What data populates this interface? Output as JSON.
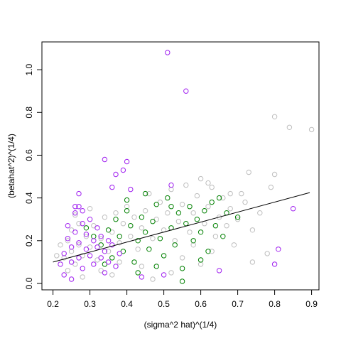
{
  "chart_data": {
    "type": "scatter",
    "xlabel": "(sigma^2 hat)^(1/4)",
    "ylabel": "(betahat^2)^(1/4)",
    "xlim": [
      0.17,
      0.92
    ],
    "ylim": [
      -0.03,
      1.13
    ],
    "x_ticks": [
      0.2,
      0.3,
      0.4,
      0.5,
      0.6,
      0.7,
      0.8,
      0.9
    ],
    "x_tick_labels": [
      "0.2",
      "0.3",
      "0.4",
      "0.5",
      "0.6",
      "0.7",
      "0.8",
      "0.9"
    ],
    "y_ticks": [
      0.0,
      0.2,
      0.4,
      0.6,
      0.8,
      1.0
    ],
    "y_tick_labels": [
      "0.0",
      "0.2",
      "0.4",
      "0.6",
      "0.8",
      "1.0"
    ],
    "grid": false,
    "marker": "open-circle",
    "series_colors": [
      "#bebebe",
      "#008000",
      "#a020f0"
    ],
    "series": [
      {
        "color": "#bebebe",
        "values": [
          [
            0.23,
            0.12
          ],
          [
            0.24,
            0.2
          ],
          [
            0.25,
            0.15
          ],
          [
            0.25,
            0.25
          ],
          [
            0.26,
            0.09
          ],
          [
            0.27,
            0.18
          ],
          [
            0.27,
            0.28
          ],
          [
            0.28,
            0.13
          ],
          [
            0.29,
            0.22
          ],
          [
            0.3,
            0.17
          ],
          [
            0.31,
            0.27
          ],
          [
            0.32,
            0.11
          ],
          [
            0.33,
            0.21
          ],
          [
            0.34,
            0.31
          ],
          [
            0.35,
            0.15
          ],
          [
            0.36,
            0.24
          ],
          [
            0.37,
            0.33
          ],
          [
            0.38,
            0.19
          ],
          [
            0.39,
            0.28
          ],
          [
            0.4,
            0.36
          ],
          [
            0.41,
            0.22
          ],
          [
            0.42,
            0.31
          ],
          [
            0.43,
            0.16
          ],
          [
            0.44,
            0.26
          ],
          [
            0.45,
            0.34
          ],
          [
            0.46,
            0.42
          ],
          [
            0.47,
            0.21
          ],
          [
            0.48,
            0.3
          ],
          [
            0.49,
            0.38
          ],
          [
            0.5,
            0.25
          ],
          [
            0.51,
            0.33
          ],
          [
            0.52,
            0.44
          ],
          [
            0.53,
            0.2
          ],
          [
            0.54,
            0.29
          ],
          [
            0.55,
            0.37
          ],
          [
            0.56,
            0.46
          ],
          [
            0.57,
            0.24
          ],
          [
            0.58,
            0.33
          ],
          [
            0.59,
            0.41
          ],
          [
            0.6,
            0.49
          ],
          [
            0.61,
            0.28
          ],
          [
            0.62,
            0.36
          ],
          [
            0.63,
            0.45
          ],
          [
            0.64,
            0.22
          ],
          [
            0.65,
            0.31
          ],
          [
            0.66,
            0.4
          ],
          [
            0.67,
            0.27
          ],
          [
            0.68,
            0.35
          ],
          [
            0.69,
            0.18
          ],
          [
            0.7,
            0.3
          ],
          [
            0.71,
            0.42
          ],
          [
            0.72,
            0.38
          ],
          [
            0.73,
            0.52
          ],
          [
            0.74,
            0.25
          ],
          [
            0.76,
            0.33
          ],
          [
            0.78,
            0.14
          ],
          [
            0.79,
            0.45
          ],
          [
            0.8,
            0.51
          ],
          [
            0.8,
            0.78
          ],
          [
            0.84,
            0.73
          ],
          [
            0.9,
            0.72
          ],
          [
            0.52,
            0.05
          ],
          [
            0.55,
            0.12
          ],
          [
            0.6,
            0.09
          ],
          [
            0.47,
            0.02
          ],
          [
            0.44,
            0.08
          ],
          [
            0.36,
            0.04
          ],
          [
            0.58,
            0.18
          ],
          [
            0.26,
            0.32
          ],
          [
            0.3,
            0.35
          ],
          [
            0.22,
            0.18
          ],
          [
            0.21,
            0.13
          ],
          [
            0.24,
            0.06
          ],
          [
            0.28,
            0.03
          ],
          [
            0.33,
            0.06
          ],
          [
            0.38,
            0.1
          ],
          [
            0.62,
            0.47
          ],
          [
            0.63,
            0.15
          ],
          [
            0.68,
            0.42
          ],
          [
            0.74,
            0.1
          ]
        ]
      },
      {
        "color": "#008000",
        "values": [
          [
            0.33,
            0.18
          ],
          [
            0.35,
            0.25
          ],
          [
            0.36,
            0.12
          ],
          [
            0.37,
            0.3
          ],
          [
            0.38,
            0.22
          ],
          [
            0.39,
            0.15
          ],
          [
            0.4,
            0.34
          ],
          [
            0.41,
            0.27
          ],
          [
            0.42,
            0.1
          ],
          [
            0.43,
            0.2
          ],
          [
            0.44,
            0.31
          ],
          [
            0.45,
            0.24
          ],
          [
            0.46,
            0.16
          ],
          [
            0.47,
            0.29
          ],
          [
            0.48,
            0.37
          ],
          [
            0.49,
            0.21
          ],
          [
            0.5,
            0.13
          ],
          [
            0.51,
            0.4
          ],
          [
            0.52,
            0.26
          ],
          [
            0.53,
            0.18
          ],
          [
            0.54,
            0.33
          ],
          [
            0.55,
            0.07
          ],
          [
            0.56,
            0.28
          ],
          [
            0.57,
            0.36
          ],
          [
            0.58,
            0.2
          ],
          [
            0.59,
            0.3
          ],
          [
            0.6,
            0.24
          ],
          [
            0.61,
            0.34
          ],
          [
            0.62,
            0.15
          ],
          [
            0.63,
            0.38
          ],
          [
            0.64,
            0.27
          ],
          [
            0.65,
            0.4
          ],
          [
            0.66,
            0.22
          ],
          [
            0.67,
            0.33
          ],
          [
            0.7,
            0.31
          ],
          [
            0.43,
            0.05
          ],
          [
            0.4,
            0.39
          ],
          [
            0.48,
            0.08
          ],
          [
            0.55,
            0.01
          ],
          [
            0.34,
            0.09
          ],
          [
            0.31,
            0.22
          ],
          [
            0.29,
            0.26
          ],
          [
            0.45,
            0.42
          ],
          [
            0.6,
            0.11
          ],
          [
            0.52,
            0.36
          ]
        ]
      },
      {
        "color": "#a020f0",
        "values": [
          [
            0.23,
            0.14
          ],
          [
            0.24,
            0.21
          ],
          [
            0.24,
            0.27
          ],
          [
            0.25,
            0.17
          ],
          [
            0.25,
            0.1
          ],
          [
            0.26,
            0.24
          ],
          [
            0.26,
            0.33
          ],
          [
            0.27,
            0.19
          ],
          [
            0.27,
            0.12
          ],
          [
            0.28,
            0.28
          ],
          [
            0.28,
            0.07
          ],
          [
            0.29,
            0.16
          ],
          [
            0.29,
            0.23
          ],
          [
            0.3,
            0.3
          ],
          [
            0.3,
            0.13
          ],
          [
            0.31,
            0.2
          ],
          [
            0.31,
            0.09
          ],
          [
            0.32,
            0.26
          ],
          [
            0.32,
            0.17
          ],
          [
            0.33,
            0.12
          ],
          [
            0.33,
            0.22
          ],
          [
            0.34,
            0.05
          ],
          [
            0.34,
            0.15
          ],
          [
            0.35,
            0.2
          ],
          [
            0.35,
            0.1
          ],
          [
            0.36,
            0.18
          ],
          [
            0.37,
            0.08
          ],
          [
            0.38,
            0.14
          ],
          [
            0.22,
            0.09
          ],
          [
            0.23,
            0.04
          ],
          [
            0.25,
            0.02
          ],
          [
            0.27,
            0.36
          ],
          [
            0.26,
            0.36
          ],
          [
            0.28,
            0.34
          ],
          [
            0.27,
            0.42
          ],
          [
            0.34,
            0.58
          ],
          [
            0.37,
            0.51
          ],
          [
            0.39,
            0.53
          ],
          [
            0.4,
            0.57
          ],
          [
            0.36,
            0.45
          ],
          [
            0.41,
            0.44
          ],
          [
            0.51,
            1.08
          ],
          [
            0.56,
            0.9
          ],
          [
            0.52,
            0.46
          ],
          [
            0.8,
            0.09
          ],
          [
            0.81,
            0.16
          ],
          [
            0.85,
            0.35
          ],
          [
            0.65,
            0.06
          ],
          [
            0.5,
            0.04
          ],
          [
            0.44,
            0.03
          ]
        ]
      }
    ],
    "fit_line": {
      "color": "#000000",
      "x": [
        0.2,
        0.895
      ],
      "y": [
        0.1,
        0.425
      ]
    }
  }
}
